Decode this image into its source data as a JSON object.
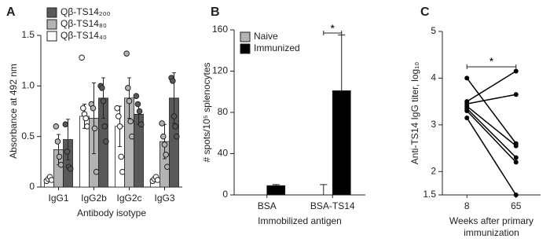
{
  "chart_data": [
    {
      "panel": "A",
      "type": "bar",
      "ylabel": "Absorbance at 492 nm",
      "xlabel": "Antibody isotype",
      "categories": [
        "IgG1",
        "IgG2b",
        "IgG2c",
        "IgG3"
      ],
      "ylim": [
        0,
        1.5
      ],
      "yticks": [
        0,
        0.5,
        {
          "value": 1,
          "label": "1.0"
        },
        1.5
      ],
      "legend": "upper left",
      "legend_reversed": true,
      "error_bars": "both",
      "series": [
        {
          "name": "Qβ-TS14₄₀",
          "color": "#ffffff",
          "values": [
            0.08,
            0.7,
            0.6,
            0.08
          ],
          "errors": [
            0.02,
            0.12,
            0.2,
            0.02
          ],
          "points": [
            [
              0.06,
              0.08,
              0.1,
              0.07
            ],
            [
              1.28,
              0.78,
              0.72,
              0.68,
              0.6
            ],
            [
              0.78,
              0.7,
              0.6,
              0.3,
              0.15
            ],
            [
              0.06,
              0.08,
              0.1,
              0.07
            ]
          ]
        },
        {
          "name": "Qβ-TS14₈₀",
          "color": "#b3b3b3",
          "values": [
            0.37,
            0.68,
            0.88,
            0.45
          ],
          "errors": [
            0.15,
            0.35,
            0.2,
            0.17
          ],
          "points": [
            [
              0.6,
              0.45,
              0.3,
              0.22
            ],
            [
              0.82,
              0.78,
              0.58,
              0.15
            ],
            [
              1.32,
              0.98,
              0.85,
              0.65,
              0.5
            ],
            [
              0.63,
              0.5,
              0.42,
              0.32,
              0.2
            ]
          ]
        },
        {
          "name": "Qβ-TS14₂₀₀",
          "color": "#595959",
          "values": [
            0.47,
            0.88,
            0.72,
            0.88
          ],
          "errors": [
            0.2,
            0.2,
            0.1,
            0.25
          ],
          "points": [
            [
              0.62,
              0.35,
              0.2,
              0.18
            ],
            [
              1.0,
              0.98,
              0.85,
              0.6,
              0.45
            ],
            [
              0.9,
              0.82,
              0.75,
              0.62
            ],
            [
              1.08,
              1.05,
              0.7,
              0.6,
              0.5
            ]
          ]
        }
      ]
    },
    {
      "panel": "B",
      "type": "bar",
      "ylabel": "# spots/10⁵ splenocytes",
      "xlabel": "Immobilized antigen",
      "categories": [
        "BSA",
        "BSA-TS14"
      ],
      "ylim": [
        0,
        160
      ],
      "yticks": [
        0,
        40,
        80,
        120,
        160
      ],
      "legend": "upper left",
      "error_bars": "upper",
      "annotation": "*",
      "series": [
        {
          "name": "Naive",
          "color": "#b3b3b3",
          "values": [
            0,
            0
          ],
          "errors": [
            0,
            10
          ]
        },
        {
          "name": "Immunized",
          "color": "#000000",
          "values": [
            9,
            101
          ],
          "errors": [
            1,
            54
          ]
        }
      ]
    },
    {
      "panel": "C",
      "type": "line",
      "ylabel": "Anti-TS14 IgG titer, log₁₀",
      "xlabel": [
        "Weeks after primary",
        "immunization"
      ],
      "categories": [
        "8",
        "65"
      ],
      "ylim": [
        1.5,
        5
      ],
      "yticks": [
        1.5,
        2,
        3,
        4,
        5
      ],
      "annotation": "*",
      "series": [
        {
          "color": "#000000",
          "values": [
            4.0,
            2.6
          ]
        },
        {
          "color": "#000000",
          "values": [
            3.5,
            4.15
          ]
        },
        {
          "color": "#000000",
          "values": [
            3.45,
            3.65
          ]
        },
        {
          "color": "#000000",
          "values": [
            3.4,
            2.55
          ]
        },
        {
          "color": "#000000",
          "values": [
            3.35,
            2.3
          ]
        },
        {
          "color": "#000000",
          "values": [
            3.3,
            2.2
          ]
        },
        {
          "color": "#000000",
          "values": [
            3.15,
            1.5
          ]
        }
      ]
    }
  ]
}
